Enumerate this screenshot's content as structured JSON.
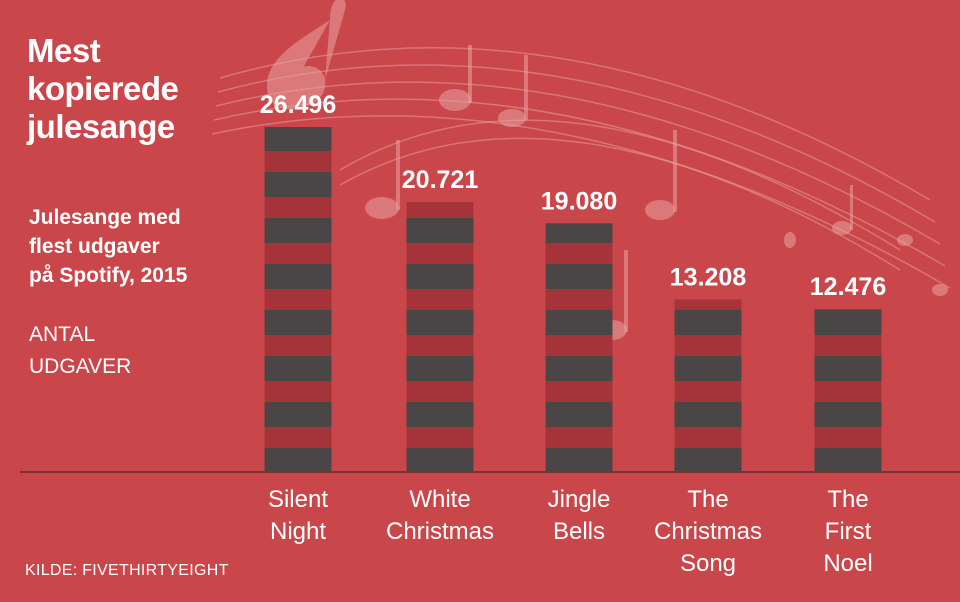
{
  "header": {
    "title": "Mest\nkopierede\njulesange",
    "subtitle": "Julesange med\nflest udgaver\npå Spotify, 2015",
    "unit_label": "ANTAL\nUDGAVER"
  },
  "footer": {
    "source": "KILDE: FIVETHIRTYEIGHT"
  },
  "colors": {
    "background": "#c9474b",
    "bar_dark": "#4a4647",
    "bar_stripe": "#a5343a",
    "text": "#ffffff"
  },
  "chart_data": {
    "type": "bar",
    "title": "Mest kopierede julesange",
    "subtitle": "Julesange med flest udgaver på Spotify, 2015",
    "ylabel": "ANTAL UDGAVER",
    "xlabel": "",
    "categories": [
      "Silent\nNight",
      "White\nChristmas",
      "Jingle\nBells",
      "The\nChristmas\nSong",
      "The\nFirst\nNoel"
    ],
    "values": [
      26496,
      20721,
      19080,
      13208,
      12476
    ],
    "value_labels": [
      "26.496",
      "20.721",
      "19.080",
      "13.208",
      "12.476"
    ],
    "ylim": [
      0,
      26496
    ],
    "grid": false,
    "legend": "none"
  }
}
